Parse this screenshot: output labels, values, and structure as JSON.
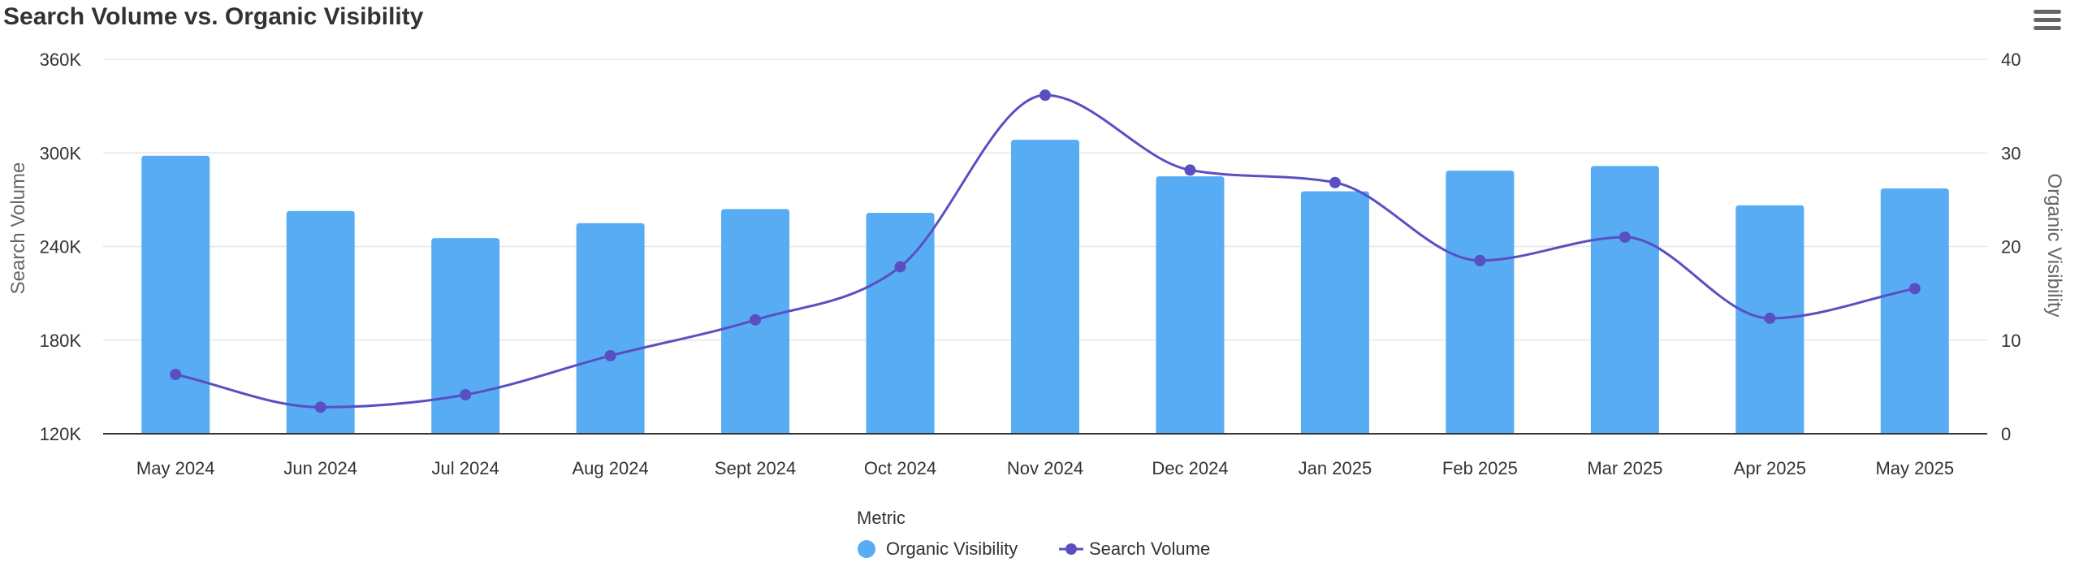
{
  "title": "Search Volume vs. Organic Visibility",
  "menu_icon": "hamburger-menu-icon",
  "colors": {
    "bar": "#58acf4",
    "line": "#5a4fc2",
    "grid": "#e6e6e6",
    "axis": "#333333"
  },
  "chart_data": {
    "type": "bar+line",
    "title": "Search Volume vs. Organic Visibility",
    "categories": [
      "May 2024",
      "Jun 2024",
      "Jul 2024",
      "Aug 2024",
      "Sept 2024",
      "Oct 2024",
      "Nov 2024",
      "Dec 2024",
      "Jan 2025",
      "Feb 2025",
      "Mar 2025",
      "Apr 2025",
      "May 2025"
    ],
    "series": [
      {
        "name": "Organic Visibility",
        "type": "bar",
        "axis": "right",
        "values": [
          29.7,
          23.8,
          20.9,
          22.5,
          24.0,
          23.6,
          31.4,
          27.5,
          25.9,
          28.1,
          28.6,
          24.4,
          26.2
        ]
      },
      {
        "name": "Search Volume",
        "type": "line",
        "axis": "left",
        "values": [
          158000,
          137000,
          145000,
          170000,
          193000,
          227000,
          337000,
          289000,
          281000,
          231000,
          246000,
          194000,
          213000
        ]
      }
    ],
    "y_left": {
      "label": "Search Volume",
      "min": 120000,
      "max": 360000,
      "ticks": [
        "120K",
        "180K",
        "240K",
        "300K",
        "360K"
      ]
    },
    "y_right": {
      "label": "Organic Visibility",
      "min": 0,
      "max": 40,
      "ticks": [
        "0",
        "10",
        "20",
        "30",
        "40"
      ]
    },
    "grid": true,
    "legend": {
      "title": "Metric",
      "position": "bottom-center",
      "items": [
        "Organic Visibility",
        "Search Volume"
      ]
    }
  }
}
